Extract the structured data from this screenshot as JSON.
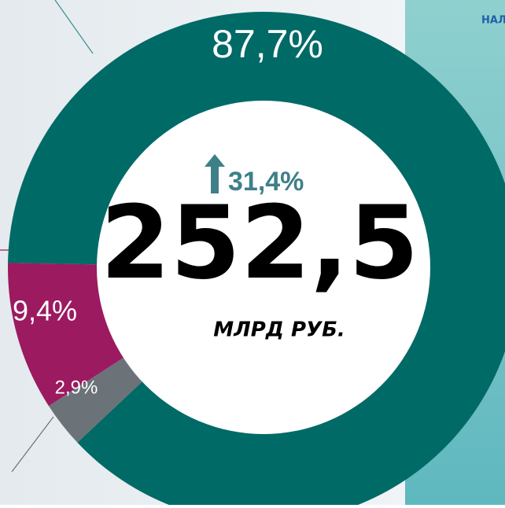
{
  "chart_data": {
    "type": "donut",
    "values": [
      87.7,
      2.9,
      9.4
    ],
    "value_labels": [
      "87,7%",
      "2,9%",
      "9,4%"
    ],
    "colors": [
      "#006a67",
      "#6b7378",
      "#9c1a60"
    ],
    "center_change": "31,4%",
    "center_value": "252,5",
    "center_unit": "МЛРД РУБ.",
    "corner_text": "НАЛ"
  }
}
